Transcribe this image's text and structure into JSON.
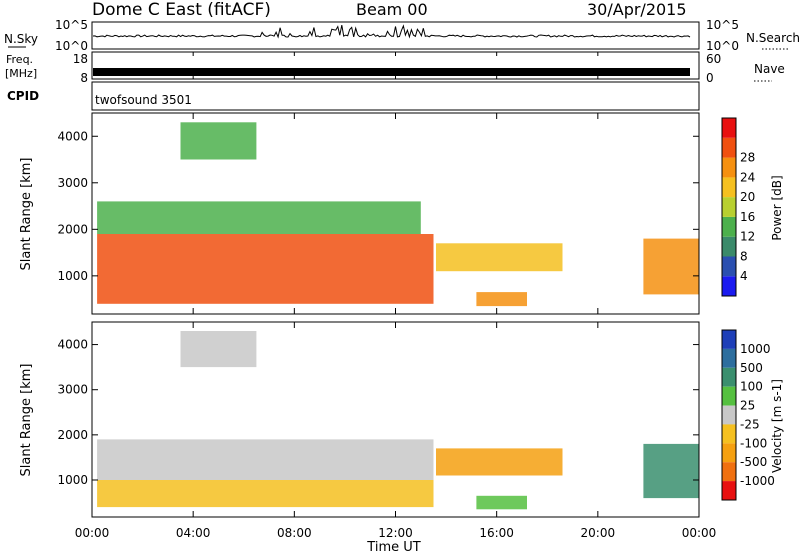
{
  "header": {
    "station": "Dome C East (fitACF)",
    "beam": "Beam 00",
    "date": "30/Apr/2015"
  },
  "noise_panel": {
    "left_label": "N.Sky",
    "right_label": "N.Search",
    "left_ticks": [
      "10^5",
      "10^0"
    ],
    "right_ticks": [
      "10^5",
      "10^0"
    ]
  },
  "freq_panel": {
    "left_label_line1": "Freq.",
    "left_label_line2": "[MHz]",
    "right_label": "Nave",
    "left_ticks": [
      "18",
      "8"
    ],
    "right_ticks": [
      "60",
      "0"
    ]
  },
  "cpid_panel": {
    "label": "CPID",
    "value": "twofsound 3501"
  },
  "xaxis": {
    "label": "Time UT",
    "ticks": [
      "00:00",
      "04:00",
      "08:00",
      "12:00",
      "16:00",
      "20:00",
      "00:00"
    ]
  },
  "power_panel": {
    "ylabel": "Slant Range [km]",
    "yticks": [
      "1000",
      "2000",
      "3000",
      "4000"
    ],
    "cbar_label": "Power [dB]",
    "cbar_ticks": [
      "4",
      "8",
      "12",
      "16",
      "20",
      "24",
      "28"
    ],
    "cbar_colors": [
      "#1b1bf0",
      "#2a4fb0",
      "#3a8a6a",
      "#4cb04c",
      "#b8d030",
      "#f5c020",
      "#f59010",
      "#f05010",
      "#e81010"
    ]
  },
  "velocity_panel": {
    "ylabel": "Slant Range [km]",
    "yticks": [
      "1000",
      "2000",
      "3000",
      "4000"
    ],
    "cbar_label": "Velocity [m s-1]",
    "cbar_ticks": [
      "1000",
      "500",
      "100",
      "25",
      "-25",
      "-100",
      "-500",
      "-1000"
    ],
    "cbar_colors": [
      "#1e3fb8",
      "#2d6e9e",
      "#3a8f6e",
      "#55c040",
      "#c8c8c8",
      "#f5c020",
      "#f5a010",
      "#f07010",
      "#e81010"
    ]
  },
  "chart_data": {
    "type": "heatmap",
    "x_range_hours": [
      0,
      24
    ],
    "y_range_km": [
      180,
      4500
    ],
    "power_blobs": [
      {
        "t0": 0.2,
        "t1": 13.5,
        "r0": 400,
        "r1": 1900,
        "level": 26
      },
      {
        "t0": 13.6,
        "t1": 18.6,
        "r0": 1100,
        "r1": 1700,
        "level": 18
      },
      {
        "t0": 15.2,
        "t1": 17.2,
        "r0": 350,
        "r1": 650,
        "level": 22
      },
      {
        "t0": 21.8,
        "t1": 24,
        "r0": 600,
        "r1": 1800,
        "level": 24
      },
      {
        "t0": 0.2,
        "t1": 13,
        "r0": 1900,
        "r1": 2600,
        "level": 10
      },
      {
        "t0": 3.5,
        "t1": 6.5,
        "r0": 3500,
        "r1": 4300,
        "level": 12
      }
    ],
    "velocity_blobs": [
      {
        "t0": 0.2,
        "t1": 13.5,
        "r0": 400,
        "r1": 1000,
        "v": -80
      },
      {
        "t0": 0.2,
        "t1": 13.5,
        "r0": 1000,
        "r1": 1900,
        "v": 0
      },
      {
        "t0": 13.6,
        "t1": 18.6,
        "r0": 1100,
        "r1": 1700,
        "v": -100
      },
      {
        "t0": 15.2,
        "t1": 17.2,
        "r0": 350,
        "r1": 650,
        "v": 80
      },
      {
        "t0": 21.8,
        "t1": 24,
        "r0": 600,
        "r1": 1800,
        "v": 150
      },
      {
        "t0": 3.5,
        "t1": 6.5,
        "r0": 3500,
        "r1": 4300,
        "v": 0
      }
    ]
  }
}
